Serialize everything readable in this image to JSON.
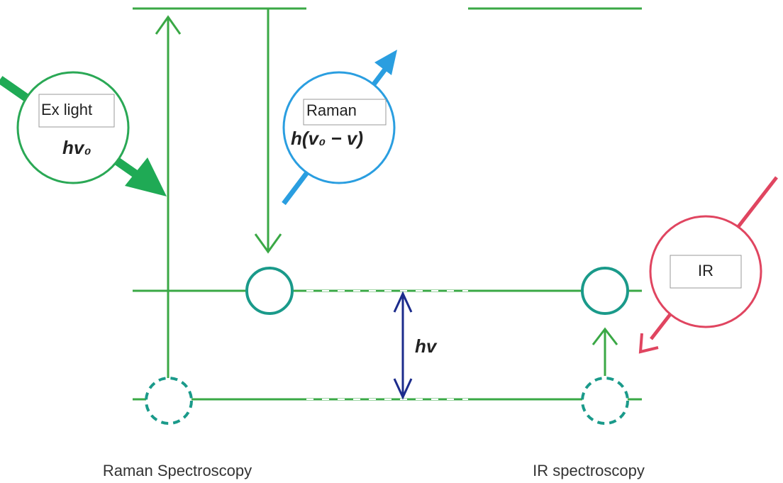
{
  "labels": {
    "ex_light": "Ex light",
    "ex_energy": "hv₀",
    "raman": "Raman",
    "raman_energy": "h(v₀ − v)",
    "ir": "IR",
    "gap_energy": "hv",
    "raman_caption": "Raman Spectroscopy",
    "ir_caption": "IR spectroscopy"
  }
}
